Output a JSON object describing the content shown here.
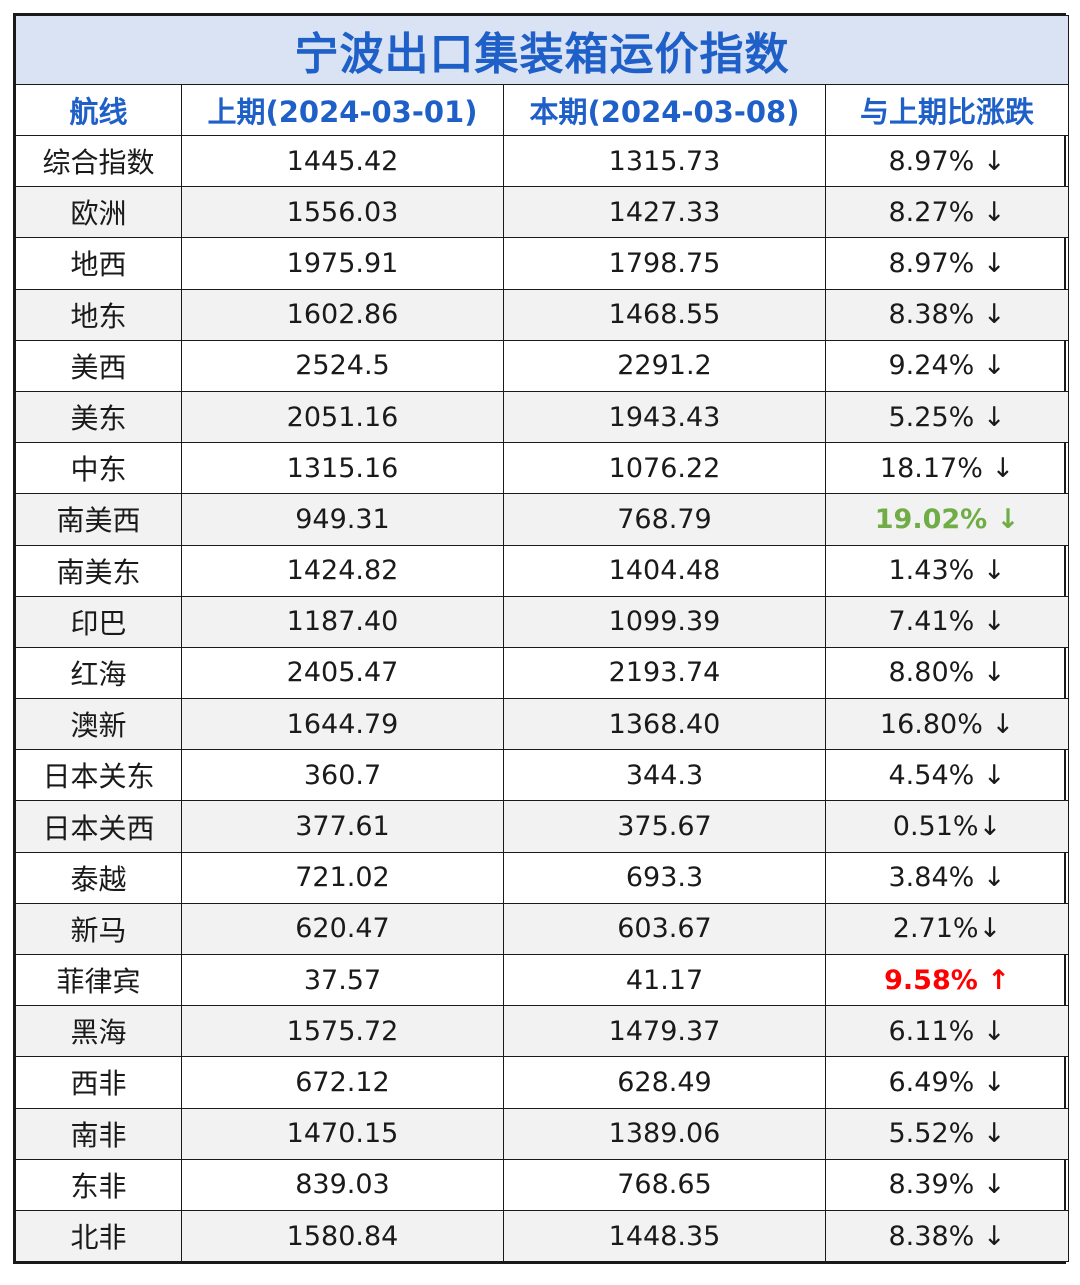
{
  "title": "宁波出口集装箱运价指数",
  "headers": [
    "航线",
    "上期(2024-03-01)",
    "本期(2024-03-08)",
    "与上期比涨跌"
  ],
  "colors": {
    "title_bg": "#dae3f3",
    "header_text": "#1f5fc8",
    "highlight_down": "#70ad47",
    "highlight_up": "#ff0000"
  },
  "rows": [
    {
      "route": "综合指数",
      "prev": "1445.42",
      "curr": "1315.73",
      "change": "8.97% ↓",
      "style": ""
    },
    {
      "route": "欧洲",
      "prev": "1556.03",
      "curr": "1427.33",
      "change": "8.27% ↓",
      "style": ""
    },
    {
      "route": "地西",
      "prev": "1975.91",
      "curr": "1798.75",
      "change": "8.97% ↓",
      "style": ""
    },
    {
      "route": "地东",
      "prev": "1602.86",
      "curr": "1468.55",
      "change": "8.38% ↓",
      "style": ""
    },
    {
      "route": "美西",
      "prev": "2524.5",
      "curr": "2291.2",
      "change": "9.24% ↓",
      "style": ""
    },
    {
      "route": "美东",
      "prev": "2051.16",
      "curr": "1943.43",
      "change": "5.25% ↓",
      "style": ""
    },
    {
      "route": "中东",
      "prev": "1315.16",
      "curr": "1076.22",
      "change": "18.17% ↓",
      "style": ""
    },
    {
      "route": "南美西",
      "prev": "949.31",
      "curr": "768.79",
      "change": "19.02% ↓",
      "style": "green"
    },
    {
      "route": "南美东",
      "prev": "1424.82",
      "curr": "1404.48",
      "change": "1.43% ↓",
      "style": ""
    },
    {
      "route": "印巴",
      "prev": "1187.40",
      "curr": "1099.39",
      "change": "7.41% ↓",
      "style": ""
    },
    {
      "route": "红海",
      "prev": "2405.47",
      "curr": "2193.74",
      "change": "8.80% ↓",
      "style": ""
    },
    {
      "route": "澳新",
      "prev": "1644.79",
      "curr": "1368.40",
      "change": "16.80% ↓",
      "style": ""
    },
    {
      "route": "日本关东",
      "prev": "360.7",
      "curr": "344.3",
      "change": "4.54% ↓",
      "style": ""
    },
    {
      "route": "日本关西",
      "prev": "377.61",
      "curr": "375.67",
      "change": "0.51%↓",
      "style": ""
    },
    {
      "route": "泰越",
      "prev": "721.02",
      "curr": "693.3",
      "change": "3.84% ↓",
      "style": ""
    },
    {
      "route": "新马",
      "prev": "620.47",
      "curr": "603.67",
      "change": "2.71%↓",
      "style": ""
    },
    {
      "route": "菲律宾",
      "prev": "37.57",
      "curr": "41.17",
      "change": "9.58% ↑",
      "style": "red"
    },
    {
      "route": "黑海",
      "prev": "1575.72",
      "curr": "1479.37",
      "change": "6.11% ↓",
      "style": ""
    },
    {
      "route": "西非",
      "prev": "672.12",
      "curr": "628.49",
      "change": "6.49% ↓",
      "style": ""
    },
    {
      "route": "南非",
      "prev": "1470.15",
      "curr": "1389.06",
      "change": "5.52% ↓",
      "style": ""
    },
    {
      "route": "东非",
      "prev": "839.03",
      "curr": "768.65",
      "change": "8.39% ↓",
      "style": ""
    },
    {
      "route": "北非",
      "prev": "1580.84",
      "curr": "1448.35",
      "change": "8.38% ↓",
      "style": ""
    }
  ]
}
